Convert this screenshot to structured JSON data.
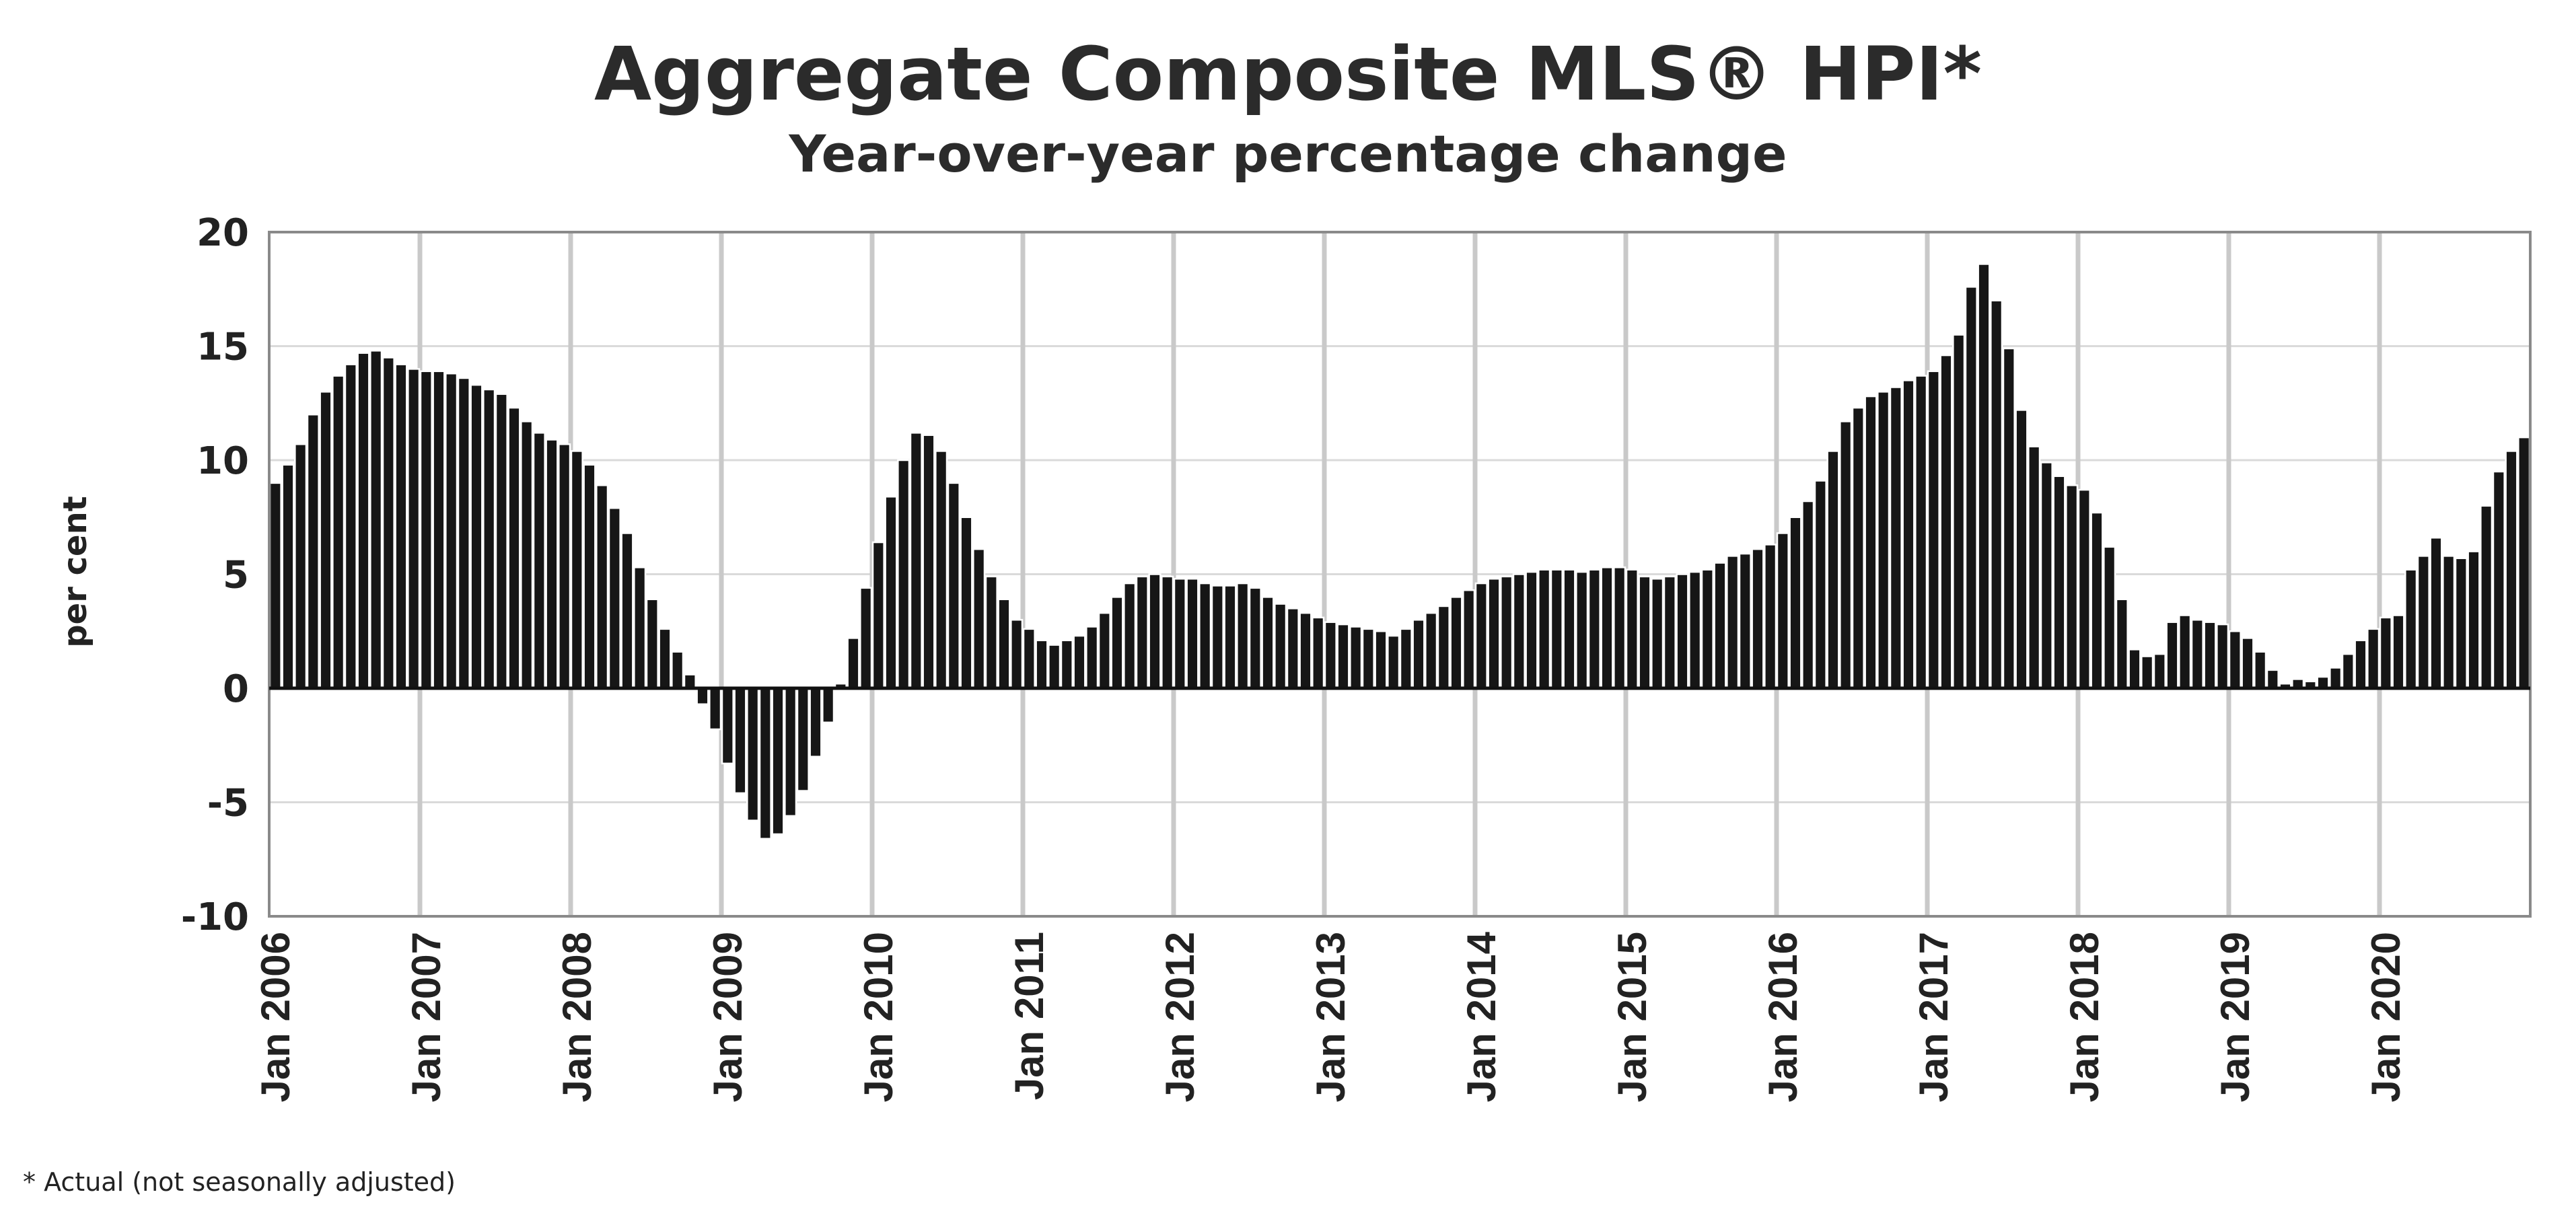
{
  "chart_data": {
    "type": "bar",
    "title": "Aggregate Composite MLS® HPI*",
    "subtitle": "Year-over-year percentage change",
    "ylabel": "per cent",
    "xlabel": "",
    "ylim": [
      -10,
      20
    ],
    "yticks": [
      20,
      15,
      10,
      5,
      0,
      -5,
      -10
    ],
    "x_tick_labels": [
      "Jan 2006",
      "Jan 2007",
      "Jan 2008",
      "Jan 2009",
      "Jan 2010",
      "Jan 2011",
      "Jan 2012",
      "Jan 2013",
      "Jan 2014",
      "Jan 2015",
      "Jan 2016",
      "Jan 2017",
      "Jan 2018",
      "Jan 2019",
      "Jan 2020"
    ],
    "grid": true,
    "footnote": "* Actual (not seasonally adjusted)",
    "colors": {
      "bar": "#161616",
      "grid": "#d6d6d6"
    },
    "series": [
      {
        "period": "monthly, Jan 2006 to Dec 2020",
        "values": [
          9.0,
          9.8,
          10.7,
          12.0,
          13.0,
          13.7,
          14.2,
          14.7,
          14.8,
          14.5,
          14.2,
          14.0,
          13.9,
          13.9,
          13.8,
          13.6,
          13.3,
          13.1,
          12.9,
          12.3,
          11.7,
          11.2,
          10.9,
          10.7,
          10.4,
          9.8,
          8.9,
          7.9,
          6.8,
          5.3,
          3.9,
          2.6,
          1.6,
          0.6,
          -0.7,
          -1.8,
          -3.3,
          -4.6,
          -5.8,
          -6.6,
          -6.4,
          -5.6,
          -4.5,
          -3.0,
          -1.5,
          0.2,
          2.2,
          4.4,
          6.4,
          8.4,
          10.0,
          11.2,
          11.1,
          10.4,
          9.0,
          7.5,
          6.1,
          4.9,
          3.9,
          3.0,
          2.6,
          2.1,
          1.9,
          2.1,
          2.3,
          2.7,
          3.3,
          4.0,
          4.6,
          4.9,
          5.0,
          4.9,
          4.8,
          4.8,
          4.6,
          4.5,
          4.5,
          4.6,
          4.4,
          4.0,
          3.7,
          3.5,
          3.3,
          3.1,
          2.9,
          2.8,
          2.7,
          2.6,
          2.5,
          2.3,
          2.6,
          3.0,
          3.3,
          3.6,
          4.0,
          4.3,
          4.6,
          4.8,
          4.9,
          5.0,
          5.1,
          5.2,
          5.2,
          5.2,
          5.1,
          5.2,
          5.3,
          5.3,
          5.2,
          4.9,
          4.8,
          4.9,
          5.0,
          5.1,
          5.2,
          5.5,
          5.8,
          5.9,
          6.1,
          6.3,
          6.8,
          7.5,
          8.2,
          9.1,
          10.4,
          11.7,
          12.3,
          12.8,
          13.0,
          13.2,
          13.5,
          13.7,
          13.9,
          14.6,
          15.5,
          17.6,
          18.6,
          17.0,
          14.9,
          12.2,
          10.6,
          9.9,
          9.3,
          8.9,
          8.7,
          7.7,
          6.2,
          3.9,
          1.7,
          1.4,
          1.5,
          2.9,
          3.2,
          3.0,
          2.9,
          2.8,
          2.5,
          2.2,
          1.6,
          0.8,
          0.2,
          0.4,
          0.3,
          0.5,
          0.9,
          1.5,
          2.1,
          2.6,
          3.1,
          3.2,
          5.2,
          5.8,
          6.6,
          5.8,
          5.7,
          6.0,
          8.0,
          9.5,
          10.4,
          11.0
        ]
      }
    ]
  }
}
